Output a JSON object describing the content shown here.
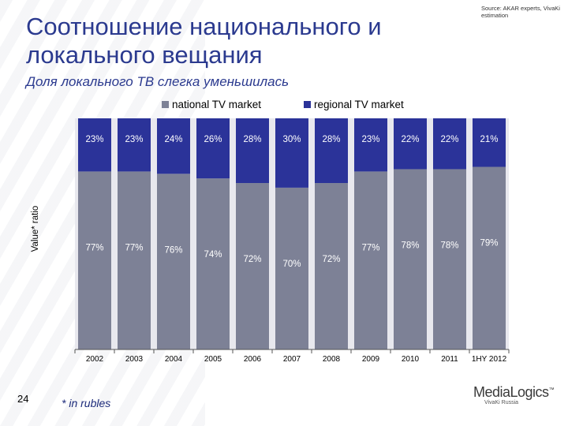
{
  "header": {
    "title": "Соотношение национального и локального вещания",
    "subtitle": "Доля локального ТВ слегка уменьшилась",
    "source": "Source: AKAR experts, VivaKi estimation"
  },
  "footer": {
    "page_number": "24",
    "footnote": "* in rubles",
    "logo_text": "MediaLogics",
    "logo_tm": "™",
    "logo_sub": "VivaKi Russia"
  },
  "colors": {
    "national": "#7d8196",
    "regional": "#2b3399",
    "plot_bg": "#e8e8ee",
    "label_light": "#ffffff"
  },
  "chart_data": {
    "type": "bar",
    "stacked": true,
    "percent": true,
    "categories": [
      "2002",
      "2003",
      "2004",
      "2005",
      "2006",
      "2007",
      "2008",
      "2009",
      "2010",
      "2011",
      "1HY 2012"
    ],
    "series": [
      {
        "name": "national TV market",
        "values": [
          77,
          77,
          76,
          74,
          72,
          70,
          72,
          77,
          78,
          78,
          79
        ],
        "labels": [
          "77%",
          "77%",
          "76%",
          "74%",
          "72%",
          "70%",
          "72%",
          "77%",
          "78%",
          "78%",
          "79%"
        ]
      },
      {
        "name": "regional TV market",
        "values": [
          23,
          23,
          24,
          26,
          28,
          30,
          28,
          23,
          22,
          22,
          21
        ],
        "labels": [
          "23%",
          "23%",
          "24%",
          "26%",
          "28%",
          "30%",
          "28%",
          "23%",
          "22%",
          "22%",
          "21%"
        ]
      }
    ],
    "ylabel": "Value* ratio",
    "ylim": [
      0,
      100
    ],
    "legend": "top",
    "grid": false
  }
}
